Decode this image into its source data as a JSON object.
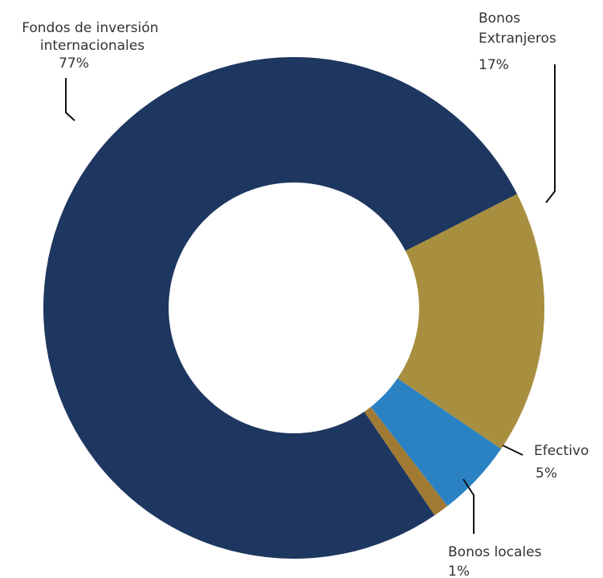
{
  "chart_data": {
    "type": "pie",
    "variant": "donut",
    "title": "",
    "categories": [
      "Fondos de inversión internacionales",
      "Bonos Extranjeros",
      "Efectivo",
      "Bonos locales"
    ],
    "values": [
      77,
      17,
      5,
      1
    ],
    "value_labels": [
      "77%",
      "17%",
      "5%",
      "1%"
    ],
    "colors": [
      "#1e3760",
      "#a88f3f",
      "#2a82c3",
      "#a07a33"
    ],
    "legend": "none"
  }
}
